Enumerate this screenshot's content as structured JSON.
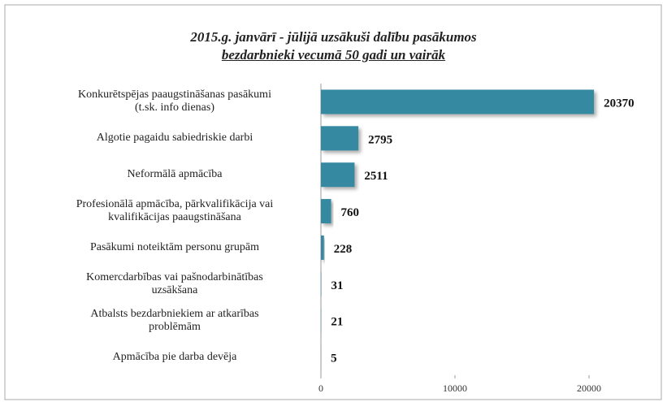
{
  "chart_data": {
    "type": "bar",
    "orientation": "horizontal",
    "title": "2015.g. janvārī - jūlijā uzsākuši dalību pasākumos",
    "subtitle": "bezdarbnieki vecumā 50 gadi un vairāk",
    "categories": [
      "Konkurētspējas paaugstināšanas pasākumi\n(t.sk. info dienas)",
      "Algotie pagaidu sabiedriskie darbi",
      "Neformālā apmācība",
      "Profesionālā apmācība, pārkvalifikācija vai\nkvalifikācijas paaugstināšana",
      "Pasākumi noteiktām personu grupām",
      "Komercdarbības vai pašnodarbinātības\nuzsākšana",
      "Atbalsts bezdarbniekiem ar atkarības\nproblēmām",
      "Apmācība pie darba devēja"
    ],
    "values": [
      20370,
      2795,
      2511,
      760,
      228,
      31,
      21,
      5
    ],
    "color": "#368aa2",
    "xlim": [
      0,
      20000
    ],
    "xticks": [
      0,
      10000,
      20000
    ]
  }
}
